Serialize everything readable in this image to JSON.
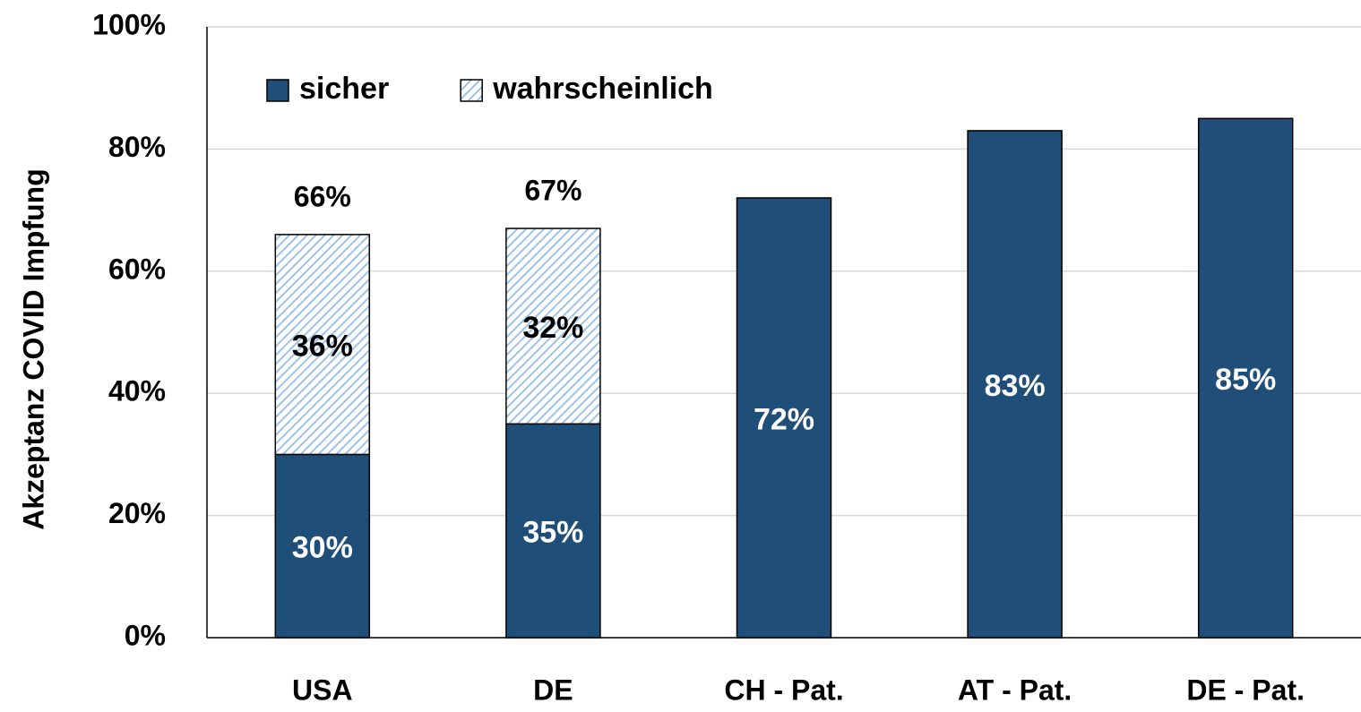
{
  "chart_data": {
    "type": "stacked_bar",
    "ylabel": "Akzeptanz COVID Impfung",
    "categories": [
      "USA",
      "DE",
      "CH - Pat.",
      "AT - Pat.",
      "DE - Pat."
    ],
    "series": [
      {
        "name": "sicher",
        "color": "#1f4e79",
        "values": [
          30,
          35,
          72,
          83,
          85
        ],
        "value_labels": [
          "30%",
          "35%",
          "72%",
          "83%",
          "85%"
        ]
      },
      {
        "name": "wahrscheinlich",
        "color": "#9dc3e6",
        "pattern": "hatch",
        "values": [
          36,
          32,
          null,
          null,
          null
        ],
        "value_labels": [
          "36%",
          "32%",
          null,
          null,
          null
        ]
      }
    ],
    "totals": [
      66,
      67,
      null,
      null,
      null
    ],
    "total_labels": [
      "66%",
      "67%",
      null,
      null,
      null
    ],
    "ylim": [
      0,
      100
    ],
    "yticks": [
      {
        "value": 0,
        "label": "0%"
      },
      {
        "value": 20,
        "label": "20%"
      },
      {
        "value": 40,
        "label": "40%"
      },
      {
        "value": 60,
        "label": "60%"
      },
      {
        "value": 80,
        "label": "80%"
      },
      {
        "value": 100,
        "label": "100%"
      }
    ],
    "grid": true,
    "legend": "top-left"
  }
}
